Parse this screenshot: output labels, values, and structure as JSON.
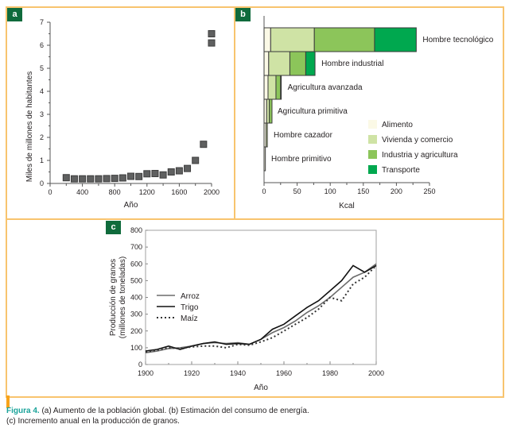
{
  "panels": {
    "a_label": "a",
    "b_label": "b",
    "c_label": "c"
  },
  "caption": {
    "figure_label": "Figura 4.",
    "line1": " (a) Aumento de la población global. (b) Estimación del consumo de energía.",
    "line2": "(c) Incremento anual en la producción de granos."
  },
  "colors": {
    "frame": "#f8c46e",
    "panel_label_bg": "#0f6b3c",
    "marker": "#5f6060",
    "alimento": "#fbf9e6",
    "vivienda": "#cfe3a5",
    "industria": "#8cc55a",
    "transporte": "#00a84f"
  },
  "chart_data": [
    {
      "id": "a",
      "type": "scatter",
      "title": "",
      "xlabel": "Año",
      "ylabel": "Miles de millones de habitantes",
      "xlim": [
        0,
        2000
      ],
      "ylim": [
        0,
        7
      ],
      "xticks": [
        "0",
        "400",
        "800",
        "1200",
        "1600",
        "2000"
      ],
      "yticks": [
        "0",
        "1",
        "2",
        "3",
        "4",
        "5",
        "6",
        "7"
      ],
      "grid": false,
      "x": [
        200,
        300,
        400,
        500,
        600,
        700,
        800,
        900,
        1000,
        1100,
        1200,
        1300,
        1400,
        1500,
        1600,
        1700,
        1800,
        1900,
        2000,
        2000
      ],
      "y": [
        0.25,
        0.2,
        0.2,
        0.2,
        0.2,
        0.21,
        0.22,
        0.24,
        0.31,
        0.3,
        0.42,
        0.43,
        0.37,
        0.5,
        0.55,
        0.65,
        1.0,
        1.7,
        6.1,
        6.5
      ]
    },
    {
      "id": "b",
      "type": "bar",
      "orientation": "horizontal",
      "stacked": true,
      "xlabel": "Kcal",
      "xlim": [
        0,
        250
      ],
      "xticks": [
        "0",
        "50",
        "100",
        "150",
        "200",
        "250"
      ],
      "categories": [
        "Hombre tecnológico",
        "Hombre industrial",
        "Agricultura avanzada",
        "Agricultura  primitiva",
        "Hombre cazador",
        "Hombre primitivo"
      ],
      "series": [
        {
          "name": "Alimento",
          "values": [
            10,
            7,
            6,
            4,
            3,
            2
          ]
        },
        {
          "name": "Vivienda y comercio",
          "values": [
            66,
            32,
            12,
            4,
            2,
            0
          ]
        },
        {
          "name": "Industria y agricultura",
          "values": [
            91,
            24,
            7,
            4,
            0,
            0
          ]
        },
        {
          "name": "Transporte",
          "values": [
            63,
            14,
            1,
            0,
            0,
            0
          ]
        }
      ],
      "legend": "right-bottom",
      "grid": false
    },
    {
      "id": "c",
      "type": "line",
      "xlabel": "Año",
      "ylabel": "Producción de granos (millones de toneladas)",
      "ylabel_line1": "Producción de granos",
      "ylabel_line2": "(millones de toneladas)",
      "xlim": [
        1900,
        2000
      ],
      "ylim": [
        0,
        800
      ],
      "xticks": [
        "1900",
        "1920",
        "1940",
        "1960",
        "1980",
        "2000"
      ],
      "yticks": [
        "0",
        "100",
        "200",
        "300",
        "400",
        "500",
        "600",
        "700",
        "800"
      ],
      "grid": false,
      "legend": "left",
      "x": [
        1900,
        1905,
        1910,
        1915,
        1920,
        1925,
        1930,
        1935,
        1940,
        1945,
        1950,
        1955,
        1960,
        1965,
        1970,
        1975,
        1980,
        1985,
        1990,
        1995,
        2000
      ],
      "series": [
        {
          "name": "Arroz",
          "style": "solid-gray",
          "values": [
            70,
            80,
            95,
            100,
            110,
            125,
            130,
            125,
            130,
            120,
            150,
            190,
            220,
            260,
            310,
            350,
            400,
            460,
            520,
            550,
            600
          ]
        },
        {
          "name": "Trigo",
          "style": "solid-black",
          "values": [
            80,
            90,
            110,
            90,
            110,
            125,
            135,
            120,
            125,
            120,
            150,
            210,
            240,
            290,
            340,
            380,
            440,
            500,
            590,
            550,
            590
          ]
        },
        {
          "name": "Maíz",
          "style": "dotted",
          "values": [
            75,
            85,
            100,
            95,
            105,
            110,
            110,
            100,
            120,
            115,
            135,
            160,
            200,
            240,
            280,
            330,
            400,
            380,
            480,
            520,
            590
          ]
        }
      ]
    }
  ]
}
